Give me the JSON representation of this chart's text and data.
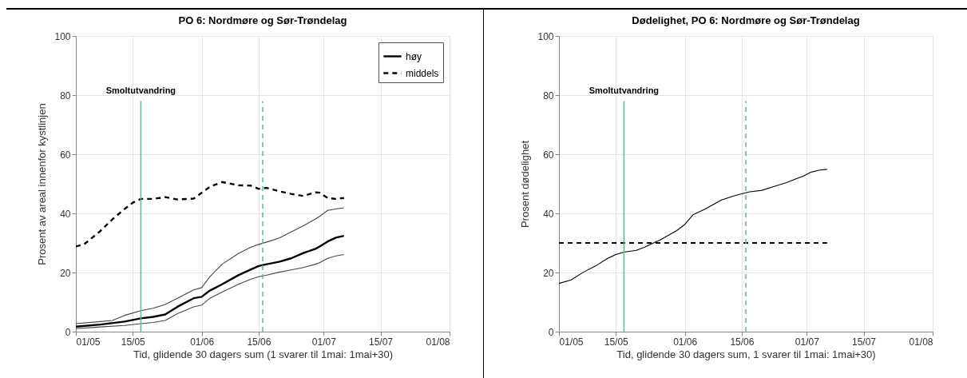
{
  "chart_data": [
    {
      "type": "line",
      "title": "PO 6: Nordmøre og Sør-Trøndelag",
      "xlabel": "Tid, glidende 30 dagers sum (1 svarer til 1mai: 1mai+30)",
      "ylabel": "Prosent av areal innenfor kystlinjen",
      "xlim": [
        "--05-01",
        "--08-01"
      ],
      "xticks": [
        {
          "value": "--05-01",
          "label": "01/05"
        },
        {
          "value": "--05-15",
          "label": "15/05"
        },
        {
          "value": "--06-01",
          "label": "01/06"
        },
        {
          "value": "--06-15",
          "label": "15/06"
        },
        {
          "value": "--07-01",
          "label": "01/07"
        },
        {
          "value": "--07-15",
          "label": "15/07"
        },
        {
          "value": "--08-01",
          "label": "01/08"
        }
      ],
      "ylim": [
        0,
        100
      ],
      "yticks": [
        0,
        20,
        40,
        60,
        80,
        100
      ],
      "grid": true,
      "legend": "top right",
      "series": [
        {
          "name": "høy",
          "color": "#000000",
          "line_style": "solid",
          "x": [
            "--05-01",
            "--05-07",
            "--05-13",
            "--05-17",
            "--05-20",
            "--05-23",
            "--05-26",
            "--05-30",
            "--06-01",
            "--06-03",
            "--06-06",
            "--06-10",
            "--06-13",
            "--06-15",
            "--06-17",
            "--06-20",
            "--06-23",
            "--06-26",
            "--06-29",
            "--06-30",
            "--07-02",
            "--07-04",
            "--07-06"
          ],
          "values": [
            1.7,
            2.4,
            3.4,
            4.5,
            5,
            5.8,
            8.4,
            11.3,
            11.8,
            13.9,
            16,
            19.1,
            21,
            22.2,
            22.8,
            23.6,
            24.8,
            26.6,
            28,
            28.8,
            30.5,
            31.8,
            32.4
          ]
        },
        {
          "name": "middels",
          "color": "#000000",
          "line_style": "dashed",
          "x": [
            "--05-01",
            "--05-03",
            "--05-07",
            "--05-10",
            "--05-13",
            "--05-15",
            "--05-17",
            "--05-20",
            "--05-23",
            "--05-26",
            "--05-30",
            "--06-01",
            "--06-03",
            "--06-06",
            "--06-10",
            "--06-13",
            "--06-15",
            "--06-17",
            "--06-20",
            "--06-23",
            "--06-26",
            "--06-29",
            "--06-30",
            "--07-02",
            "--07-04",
            "--07-06"
          ],
          "values": [
            28.8,
            29.5,
            34,
            38,
            41.5,
            43.6,
            44.9,
            44.9,
            45.5,
            44.7,
            45,
            47,
            49,
            50.6,
            49.5,
            49.4,
            48.3,
            48.6,
            47.5,
            46.6,
            45.9,
            47.1,
            47,
            45.2,
            44.9,
            45.2
          ]
        },
        {
          "color": "#444444",
          "line_style": "solid",
          "x": [
            "--05-01",
            "--05-07",
            "--05-10",
            "--05-13",
            "--05-17",
            "--05-20",
            "--05-23",
            "--05-26",
            "--05-30",
            "--06-01",
            "--06-03",
            "--06-06",
            "--06-10",
            "--06-13",
            "--06-15",
            "--06-17",
            "--06-20",
            "--06-23",
            "--06-26",
            "--06-29",
            "--06-30",
            "--07-02",
            "--07-04",
            "--07-06"
          ],
          "values": [
            2.7,
            3.4,
            3.8,
            5.5,
            7.1,
            7.9,
            9.2,
            11.3,
            14.1,
            14.9,
            18.6,
            22.8,
            26.4,
            28.5,
            29.5,
            30.3,
            31.6,
            33.7,
            35.8,
            38.1,
            39,
            41,
            41.5,
            41.9
          ]
        },
        {
          "color": "#444444",
          "line_style": "solid",
          "x": [
            "--05-01",
            "--05-07",
            "--05-13",
            "--05-17",
            "--05-20",
            "--05-23",
            "--05-26",
            "--05-30",
            "--06-01",
            "--06-03",
            "--06-06",
            "--06-10",
            "--06-13",
            "--06-15",
            "--06-17",
            "--06-20",
            "--06-23",
            "--06-26",
            "--06-29",
            "--06-30",
            "--07-02",
            "--07-04",
            "--07-06"
          ],
          "values": [
            1,
            1.6,
            2.1,
            2.7,
            3.1,
            3.8,
            6.1,
            8.4,
            9,
            11.3,
            13.4,
            16,
            17.7,
            18.6,
            19.1,
            20.1,
            20.9,
            21.7,
            22.8,
            23.3,
            24.8,
            25.6,
            26.1
          ]
        }
      ],
      "ref_lines": [
        {
          "axis": "x",
          "value": "--05-17",
          "label": "Smoltutvandring",
          "color": "#4cc68a",
          "line_style": "solid"
        },
        {
          "axis": "x",
          "value": "--06-16",
          "color": "#4cc68a",
          "line_style": "dashed"
        }
      ]
    },
    {
      "type": "line",
      "title": "Dødelighet, PO 6: Nordmøre og Sør-Trøndelag",
      "xlabel": "Tid, glidende 30 dagers sum, 1 svarer til 1mai: 1mai+30)",
      "ylabel": "Prosent dødelighet",
      "xlim": [
        "--05-01",
        "--08-01"
      ],
      "xticks": [
        {
          "value": "--05-01",
          "label": "01/05"
        },
        {
          "value": "--05-15",
          "label": "15/05"
        },
        {
          "value": "--06-01",
          "label": "01/06"
        },
        {
          "value": "--06-15",
          "label": "15/06"
        },
        {
          "value": "--07-01",
          "label": "01/07"
        },
        {
          "value": "--07-15",
          "label": "15/07"
        },
        {
          "value": "--08-01",
          "label": "01/08"
        }
      ],
      "ylim": [
        0,
        100
      ],
      "yticks": [
        0,
        20,
        40,
        60,
        80,
        100
      ],
      "grid": true,
      "series": [
        {
          "color": "#000000",
          "line_style": "solid",
          "x": [
            "--05-01",
            "--05-04",
            "--05-07",
            "--05-10",
            "--05-13",
            "--05-15",
            "--05-17",
            "--05-20",
            "--05-22",
            "--05-26",
            "--05-30",
            "--06-01",
            "--06-03",
            "--06-06",
            "--06-10",
            "--06-13",
            "--06-15",
            "--06-17",
            "--06-20",
            "--06-23",
            "--06-26",
            "--06-29",
            "--06-30",
            "--07-02",
            "--07-04",
            "--07-06"
          ],
          "values": [
            16.3,
            17.5,
            20.1,
            22.2,
            24.8,
            26.1,
            26.9,
            27.5,
            28.5,
            31.1,
            34.2,
            36.3,
            39.5,
            41.5,
            44.5,
            45.9,
            46.6,
            47.3,
            47.8,
            49.1,
            50.4,
            52,
            52.5,
            53.9,
            54.6,
            54.9
          ]
        },
        {
          "color": "#000000",
          "line_style": "dashed",
          "x": [
            "--05-01",
            "--07-06"
          ],
          "values": [
            30,
            30
          ]
        }
      ],
      "ref_lines": [
        {
          "axis": "x",
          "value": "--05-17",
          "label": "Smoltutvandring",
          "color": "#4cc68a",
          "line_style": "solid"
        },
        {
          "axis": "x",
          "value": "--06-16",
          "color": "#4cc68a",
          "line_style": "dashed"
        }
      ]
    }
  ]
}
